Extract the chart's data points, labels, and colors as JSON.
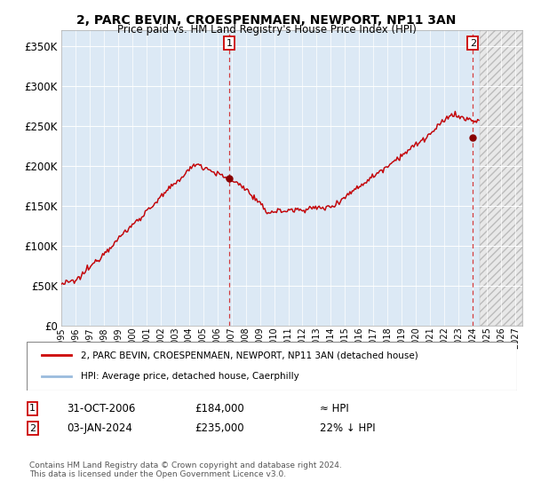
{
  "title": "2, PARC BEVIN, CROESPENMAEN, NEWPORT, NP11 3AN",
  "subtitle": "Price paid vs. HM Land Registry's House Price Index (HPI)",
  "hpi_color": "#99bbdd",
  "price_color": "#cc0000",
  "marker_color": "#880000",
  "bg_color": "#dce9f5",
  "future_bg_color": "#e8e8e8",
  "grid_color": "#ffffff",
  "yticks": [
    0,
    50000,
    100000,
    150000,
    200000,
    250000,
    300000,
    350000
  ],
  "ytick_labels": [
    "£0",
    "£50K",
    "£100K",
    "£150K",
    "£200K",
    "£250K",
    "£300K",
    "£350K"
  ],
  "ylim": [
    0,
    370000
  ],
  "sale1_date": 2006.83,
  "sale1_price": 184000,
  "sale1_label": "1",
  "sale2_date": 2024.01,
  "sale2_price": 235000,
  "sale2_label": "2",
  "xmin": 1995.0,
  "xmax": 2027.5,
  "data_end": 2024.5,
  "legend_line1": "2, PARC BEVIN, CROESPENMAEN, NEWPORT, NP11 3AN (detached house)",
  "legend_line2": "HPI: Average price, detached house, Caerphilly",
  "annotation1_date": "31-OCT-2006",
  "annotation1_price": "£184,000",
  "annotation1_hpi": "≈ HPI",
  "annotation2_date": "03-JAN-2024",
  "annotation2_price": "£235,000",
  "annotation2_hpi": "22% ↓ HPI",
  "footnote": "Contains HM Land Registry data © Crown copyright and database right 2024.\nThis data is licensed under the Open Government Licence v3.0."
}
